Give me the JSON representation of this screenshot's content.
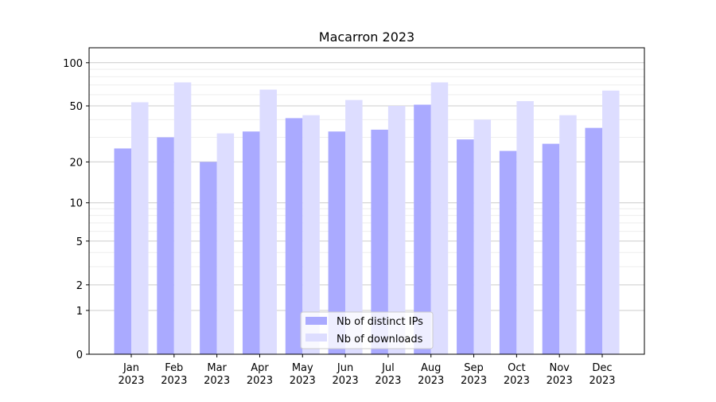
{
  "chart_data": {
    "type": "bar",
    "title": "Macarron 2023",
    "xlabel": "",
    "ylabel": "",
    "yscale": "log10(1+y)",
    "ylim": [
      0,
      120
    ],
    "yticks": [
      0,
      1,
      2,
      5,
      10,
      20,
      50,
      100
    ],
    "grid": true,
    "legend_position": "bottom-center",
    "categories": [
      "Jan\n2023",
      "Feb\n2023",
      "Mar\n2023",
      "Apr\n2023",
      "May\n2023",
      "Jun\n2023",
      "Jul\n2023",
      "Aug\n2023",
      "Sep\n2023",
      "Oct\n2023",
      "Nov\n2023",
      "Dec\n2023"
    ],
    "series": [
      {
        "name": "Nb of distinct IPs",
        "color": "#aaaaff",
        "values": [
          25,
          30,
          20,
          33,
          41,
          33,
          34,
          51,
          29,
          24,
          27,
          35
        ]
      },
      {
        "name": "Nb of downloads",
        "color": "#ddddff",
        "values": [
          53,
          73,
          32,
          65,
          43,
          55,
          50,
          73,
          40,
          54,
          43,
          64
        ]
      }
    ]
  }
}
